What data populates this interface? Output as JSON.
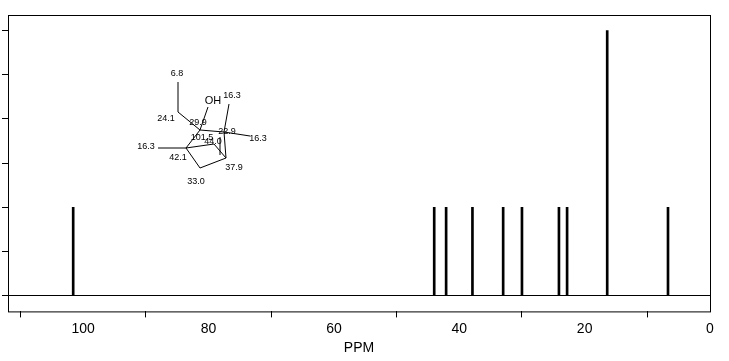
{
  "chart_data": {
    "type": "bar",
    "x_label": "PPM",
    "x": [
      101.6,
      44.0,
      42.1,
      37.9,
      33.0,
      30.0,
      24.1,
      22.8,
      16.4,
      6.7
    ],
    "values": [
      2,
      2,
      2,
      2,
      2,
      2,
      2,
      2,
      6,
      2
    ],
    "color": "#000000",
    "xlim": [
      112,
      0
    ],
    "xticks": [
      100,
      80,
      60,
      40,
      20,
      0
    ],
    "ylim": [
      -0.35,
      6.35
    ],
    "yticks": [
      0,
      1,
      2,
      3,
      4,
      5,
      6
    ],
    "grid": false,
    "tick_labels": "x",
    "annotations": [
      "6.8",
      "24.1",
      "OH",
      "16.3",
      "29.9",
      "101.5",
      "44.0",
      "22.9",
      "16.3",
      "16.3",
      "42.1",
      "33.0",
      "37.9"
    ]
  }
}
